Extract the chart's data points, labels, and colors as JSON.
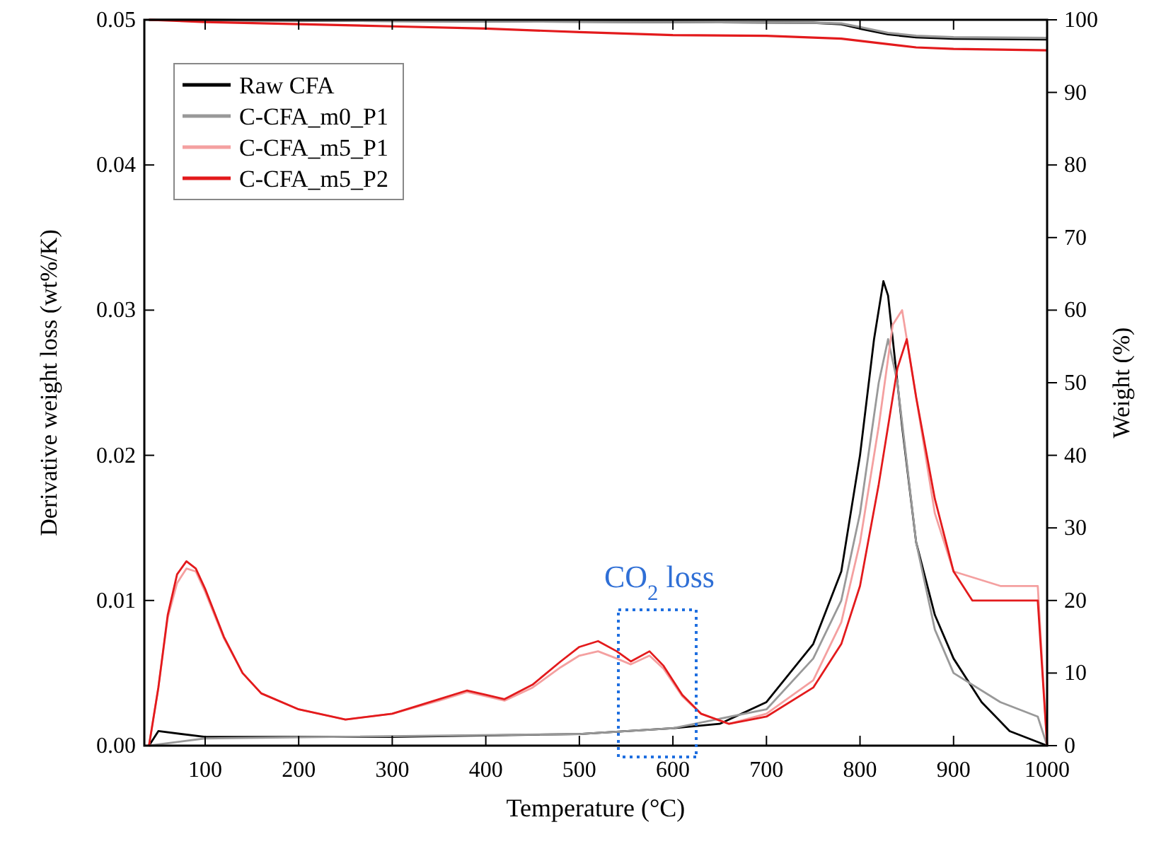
{
  "chart_data": {
    "type": "line",
    "xlabel": "Temperature (°C)",
    "ylabel": "Derivative weight loss (wt%/K)",
    "y2label": "Weight (%)",
    "xlim": [
      35,
      1000
    ],
    "xticks": [
      100,
      200,
      300,
      400,
      500,
      600,
      700,
      800,
      900,
      1000
    ],
    "ylim": [
      0,
      0.05
    ],
    "yticks": [
      {
        "value": 0,
        "label": "0.00"
      },
      {
        "value": 0.01,
        "label": "0.01"
      },
      {
        "value": 0.02,
        "label": "0.02"
      },
      {
        "value": 0.03,
        "label": "0.03"
      },
      {
        "value": 0.04,
        "label": "0.04"
      },
      {
        "value": 0.05,
        "label": "0.05"
      }
    ],
    "y2lim": [
      0,
      100
    ],
    "y2ticks": [
      0,
      10,
      20,
      30,
      40,
      50,
      60,
      70,
      80,
      90,
      100
    ],
    "legend": "top left",
    "grid": false,
    "line_style": "solid",
    "annotations": [
      "CO$_{2}$ loss"
    ],
    "series": [
      {
        "name": "Raw CFA",
        "color": "#000000",
        "x": [
          40,
          50,
          100,
          300,
          500,
          600,
          650,
          700,
          750,
          780,
          800,
          815,
          825,
          830,
          845,
          860,
          880,
          900,
          930,
          960,
          1000
        ],
        "values": [
          0,
          0.001,
          0.0006,
          0.0006,
          0.0008,
          0.0012,
          0.0015,
          0.003,
          0.007,
          0.012,
          0.02,
          0.028,
          0.032,
          0.031,
          0.022,
          0.014,
          0.009,
          0.006,
          0.003,
          0.001,
          0
        ]
      },
      {
        "name": "C-CFA_m0_P1",
        "color": "#999999",
        "x": [
          40,
          100,
          500,
          600,
          700,
          750,
          780,
          800,
          820,
          830,
          840,
          860,
          880,
          900,
          950,
          990,
          1000
        ],
        "values": [
          0,
          0.0005,
          0.0008,
          0.0012,
          0.0025,
          0.006,
          0.01,
          0.016,
          0.025,
          0.028,
          0.025,
          0.014,
          0.008,
          0.005,
          0.003,
          0.002,
          0
        ]
      },
      {
        "name": "C-CFA_m5_P1",
        "color": "#f4a0a0",
        "x": [
          40,
          50,
          60,
          70,
          80,
          90,
          100,
          120,
          140,
          160,
          200,
          250,
          300,
          350,
          380,
          400,
          420,
          450,
          480,
          500,
          520,
          540,
          555,
          575,
          590,
          610,
          630,
          660,
          700,
          750,
          780,
          800,
          820,
          835,
          845,
          860,
          880,
          900,
          950,
          990,
          1000
        ],
        "values": [
          0,
          0.004,
          0.0088,
          0.0112,
          0.0122,
          0.012,
          0.0106,
          0.0074,
          0.005,
          0.0036,
          0.0025,
          0.0018,
          0.0022,
          0.0031,
          0.0037,
          0.0034,
          0.0031,
          0.004,
          0.0054,
          0.0062,
          0.0065,
          0.006,
          0.0056,
          0.0062,
          0.0053,
          0.0034,
          0.0022,
          0.0015,
          0.0022,
          0.0045,
          0.0085,
          0.014,
          0.022,
          0.029,
          0.03,
          0.024,
          0.016,
          0.012,
          0.011,
          0.011,
          0
        ]
      },
      {
        "name": "C-CFA_m5_P2",
        "color": "#e31a1c",
        "x": [
          40,
          50,
          60,
          70,
          80,
          90,
          100,
          120,
          140,
          160,
          200,
          250,
          300,
          350,
          380,
          400,
          420,
          450,
          480,
          500,
          520,
          540,
          555,
          575,
          590,
          610,
          630,
          660,
          700,
          750,
          780,
          800,
          820,
          840,
          850,
          860,
          880,
          900,
          920,
          950,
          990,
          1000
        ],
        "values": [
          0,
          0.004,
          0.009,
          0.0118,
          0.0127,
          0.0122,
          0.0108,
          0.0075,
          0.005,
          0.0036,
          0.0025,
          0.0018,
          0.0022,
          0.0032,
          0.0038,
          0.0035,
          0.0032,
          0.0042,
          0.0058,
          0.0068,
          0.0072,
          0.0065,
          0.0058,
          0.0065,
          0.0055,
          0.0035,
          0.0022,
          0.0015,
          0.002,
          0.004,
          0.007,
          0.011,
          0.018,
          0.026,
          0.028,
          0.024,
          0.017,
          0.012,
          0.01,
          0.01,
          0.01,
          0
        ]
      },
      {
        "color": "#000000",
        "axis": "y2",
        "x": [
          40,
          200,
          400,
          600,
          750,
          780,
          800,
          830,
          860,
          900,
          1000
        ],
        "values": [
          100,
          99.9,
          99.8,
          99.7,
          99.6,
          99.4,
          98.8,
          98,
          97.6,
          97.4,
          97.3
        ]
      },
      {
        "color": "#999999",
        "axis": "y2",
        "x": [
          40,
          400,
          750,
          780,
          800,
          830,
          860,
          900,
          1000
        ],
        "values": [
          100,
          99.8,
          99.6,
          99.5,
          99,
          98.2,
          97.8,
          97.6,
          97.5
        ]
      },
      {
        "color": "#e31a1c",
        "axis": "y2",
        "x": [
          40,
          100,
          200,
          300,
          400,
          500,
          600,
          700,
          780,
          820,
          860,
          900,
          1000
        ],
        "values": [
          100,
          99.7,
          99.4,
          99.1,
          98.8,
          98.3,
          97.9,
          97.8,
          97.4,
          96.8,
          96.2,
          96,
          95.8
        ]
      }
    ]
  }
}
